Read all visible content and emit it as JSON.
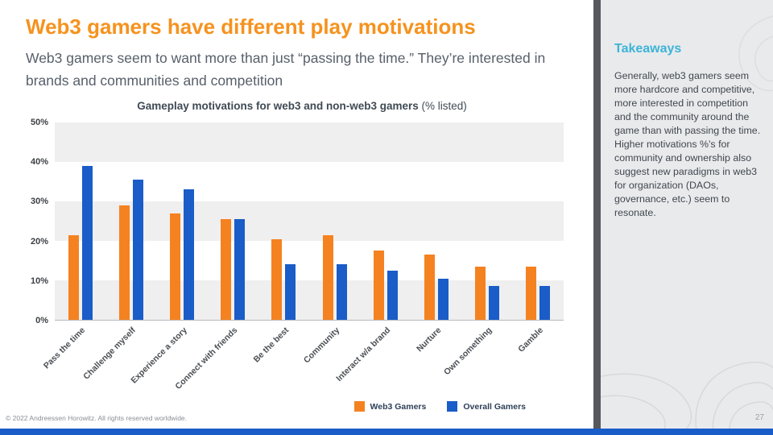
{
  "slide": {
    "title": "Web3 gamers have different play motivations",
    "subtitle": "Web3 gamers seem to want more than just “passing the time.” They’re interested in brands and communities and competition",
    "footer": "© 2022 Andreessen Horowitz. All rights reserved worldwide.",
    "page_number": "27"
  },
  "takeaways": {
    "heading": "Takeaways",
    "body": "Generally, web3 gamers seem more hardcore and competitive, more interested in competition and the community around the game than with passing the time. Higher motivations %'s for community and ownership also suggest new paradigms in web3 for organization (DAOs, governance, etc.) seem to resonate."
  },
  "colors": {
    "title_orange": "#F6921E",
    "web3_orange": "#F58220",
    "overall_blue": "#1A5CC8",
    "takeaways_cyan": "#3CB4D8",
    "divider_gray": "#55585C",
    "sidebar_gray": "#E9EAEC",
    "bottom_bar_blue": "#1A5CC8"
  },
  "chart_data": {
    "type": "bar",
    "title_bold": "Gameplay motivations for web3 and non-web3 gamers",
    "title_suffix": " (% listed)",
    "categories": [
      "Pass the time",
      "Challenge myself",
      "Experience a story",
      "Connect with friends",
      "Be the best",
      "Community",
      "Interact w/a brand",
      "Nurture",
      "Own something",
      "Gamble"
    ],
    "series": [
      {
        "name": "Web3 Gamers",
        "color": "#F58220",
        "values": [
          21.5,
          29,
          27,
          25.5,
          20.5,
          21.5,
          17.5,
          16.5,
          13.5,
          13.5
        ]
      },
      {
        "name": "Overall Gamers",
        "color": "#1A5CC8",
        "values": [
          39,
          35.5,
          33,
          25.5,
          14,
          14,
          12.5,
          10.5,
          8.5,
          8.5
        ]
      }
    ],
    "ylabel": "",
    "xlabel": "",
    "ylim": [
      0,
      50
    ],
    "yticks": [
      "50%",
      "40%",
      "30%",
      "20%",
      "10%",
      "0%"
    ],
    "grid": "banded-horizontal",
    "legend_position": "bottom-right"
  }
}
